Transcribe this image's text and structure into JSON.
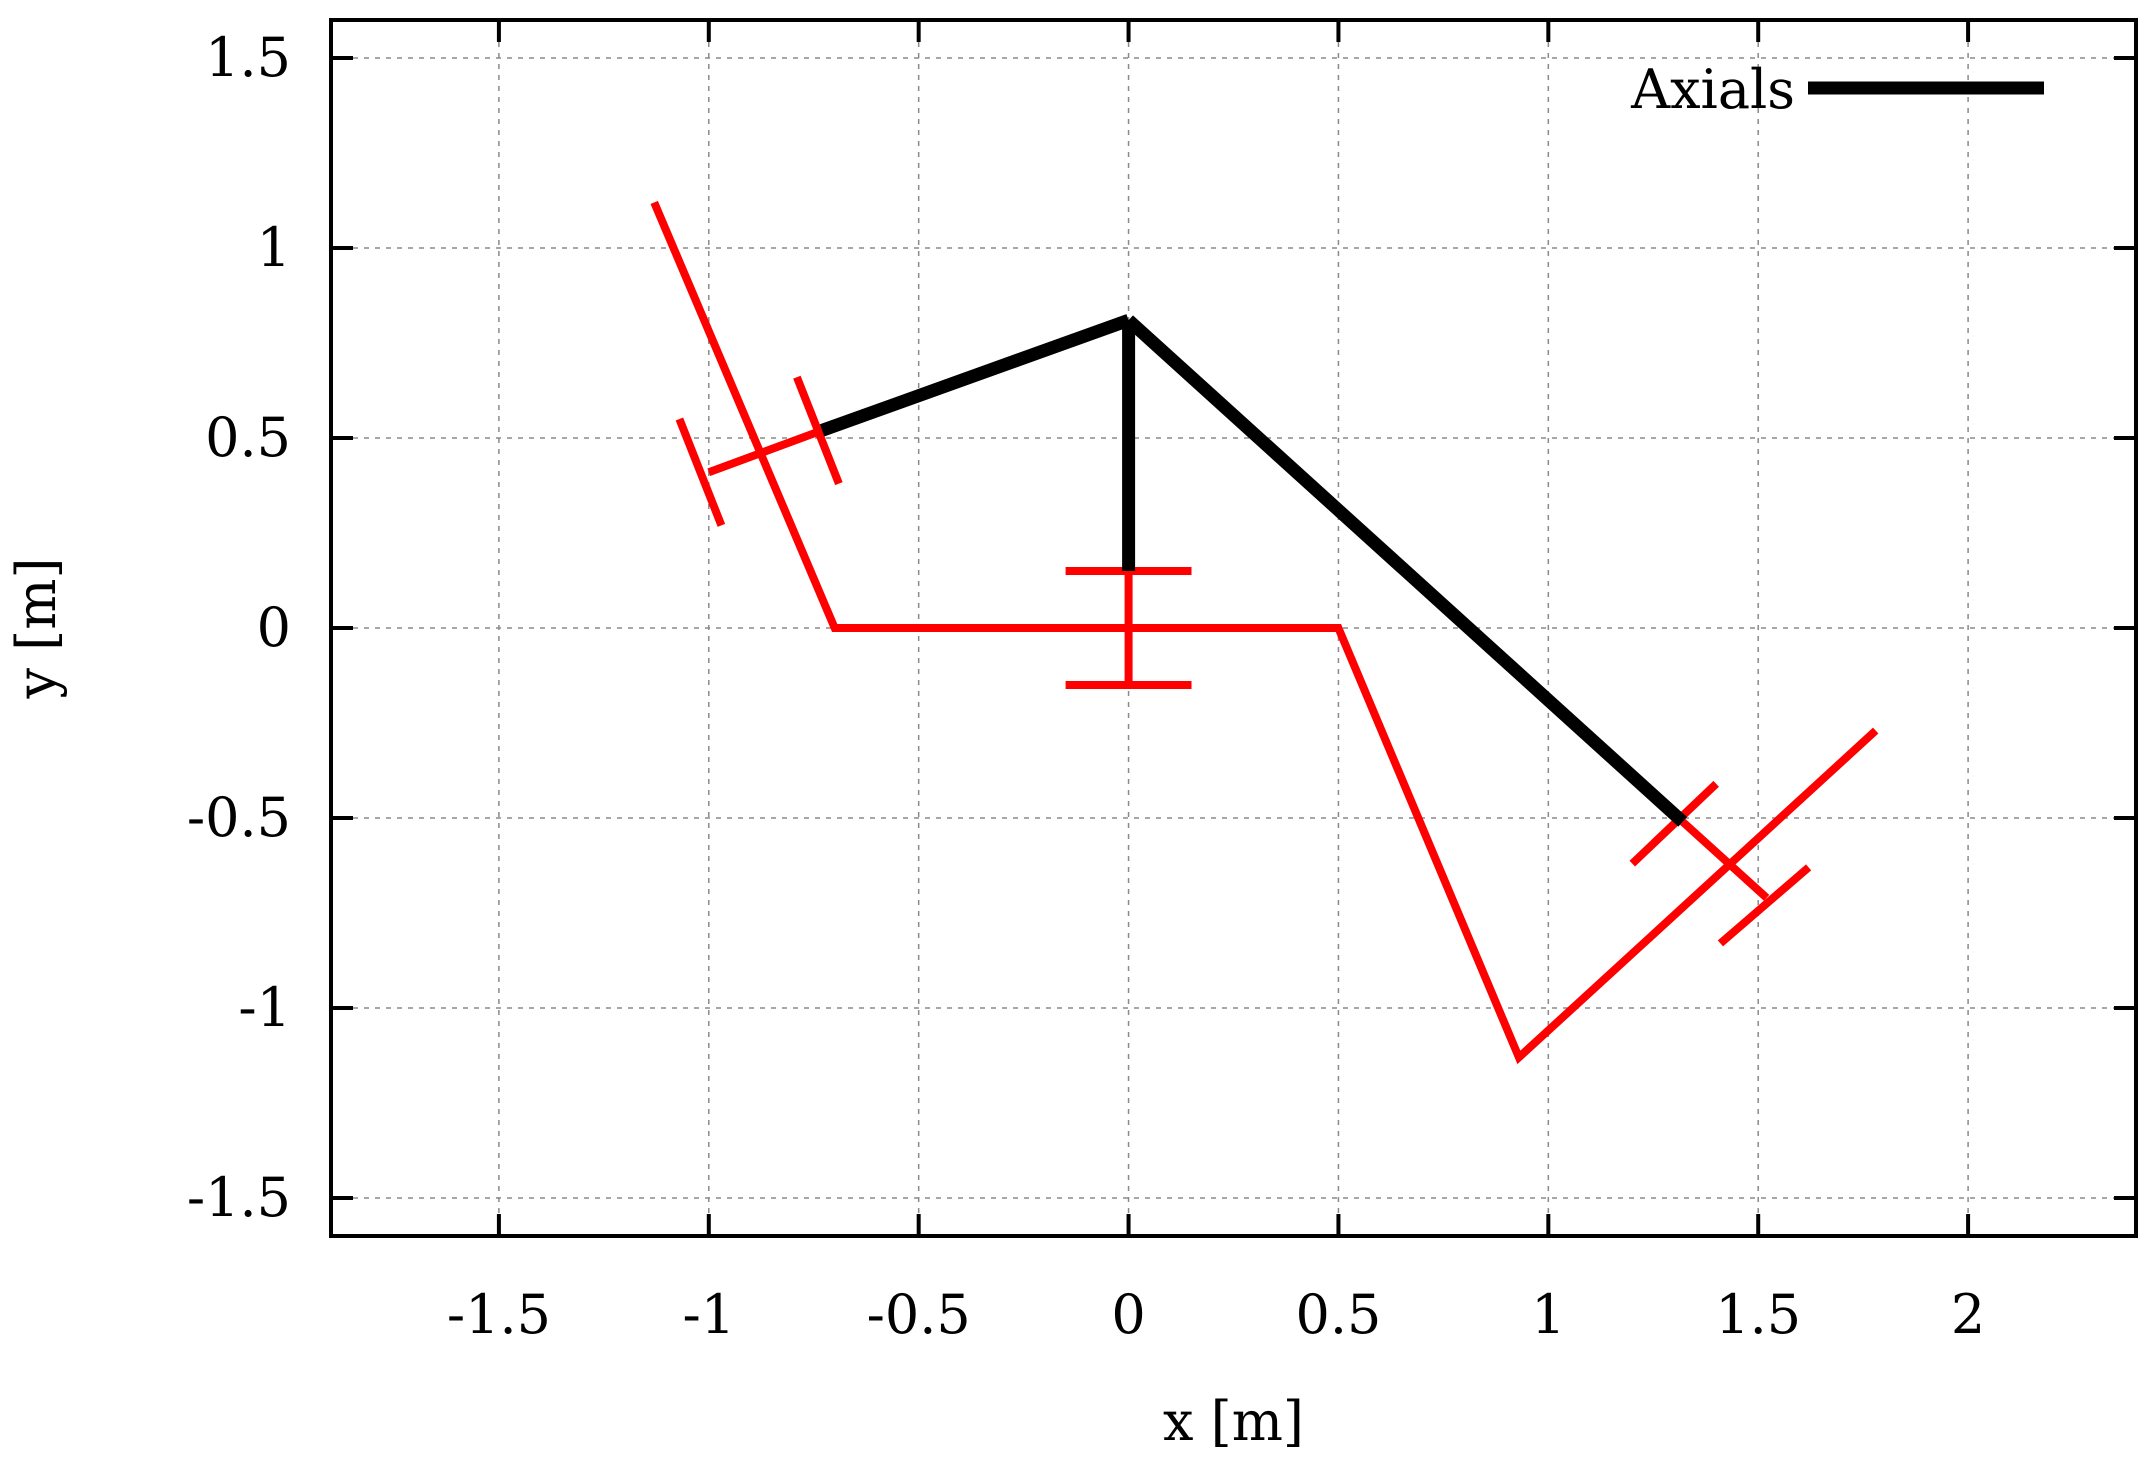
{
  "chart_data": {
    "type": "line",
    "xlabel": "x [m]",
    "ylabel": "y [m]",
    "xlim": [
      -1.9,
      2.4
    ],
    "ylim": [
      -1.6,
      1.6
    ],
    "xticks": [
      -1.5,
      -1,
      -0.5,
      0,
      0.5,
      1,
      1.5,
      2
    ],
    "yticks": [
      -1.5,
      -1,
      -0.5,
      0,
      0.5,
      1,
      1.5
    ],
    "xtick_labels": [
      "-1.5",
      "-1",
      "-0.5",
      "0",
      "0.5",
      "1",
      "1.5",
      "2"
    ],
    "ytick_labels": [
      "-1.5",
      "-1",
      "-0.5",
      "0",
      "0.5",
      "1",
      "1.5"
    ],
    "grid": true,
    "legend_position": "top-right",
    "colors": {
      "axials": "#000000",
      "structure": "#ff0000"
    },
    "series": [
      {
        "name": "Axials",
        "color": "#000000",
        "segments": [
          [
            [
              -0.73,
              0.52
            ],
            [
              0.0,
              0.81
            ]
          ],
          [
            [
              0.0,
              0.81
            ],
            [
              0.0,
              0.15
            ]
          ],
          [
            [
              0.0,
              0.81
            ],
            [
              1.32,
              -0.51
            ]
          ]
        ]
      },
      {
        "color": "#ff0000",
        "segments": [
          [
            [
              -1.13,
              1.12
            ],
            [
              -0.7,
              0.0
            ],
            [
              0.5,
              0.0
            ],
            [
              0.93,
              -1.13
            ],
            [
              1.78,
              -0.27
            ]
          ],
          [
            [
              0.0,
              0.15
            ],
            [
              0.0,
              -0.15
            ]
          ],
          [
            [
              -0.15,
              0.15
            ],
            [
              0.15,
              0.15
            ]
          ],
          [
            [
              -0.15,
              -0.15
            ],
            [
              0.15,
              -0.15
            ]
          ],
          [
            [
              -1.0,
              0.41
            ],
            [
              -0.73,
              0.52
            ]
          ],
          [
            [
              -1.07,
              0.55
            ],
            [
              -0.97,
              0.27
            ]
          ],
          [
            [
              -0.79,
              0.66
            ],
            [
              -0.69,
              0.38
            ]
          ],
          [
            [
              1.32,
              -0.51
            ],
            [
              1.52,
              -0.71
            ]
          ],
          [
            [
              1.2,
              -0.62
            ],
            [
              1.4,
              -0.41
            ]
          ],
          [
            [
              1.41,
              -0.83
            ],
            [
              1.62,
              -0.63
            ]
          ]
        ]
      }
    ]
  }
}
